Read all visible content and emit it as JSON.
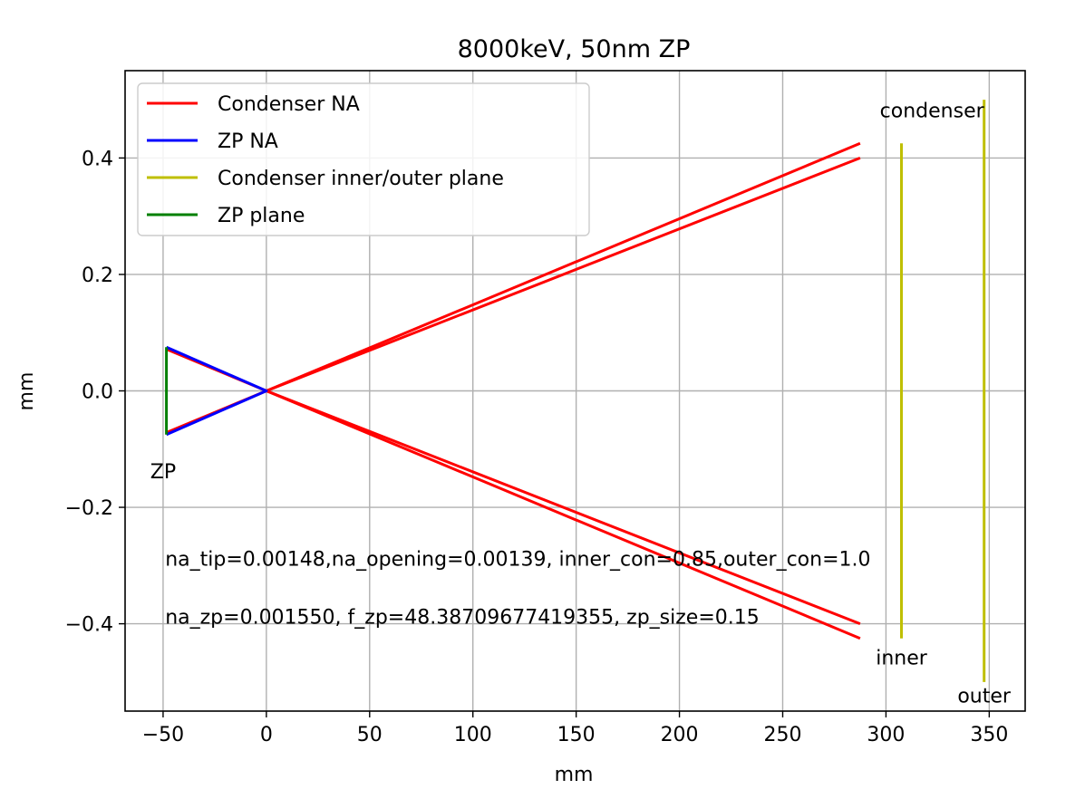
{
  "chart_data": {
    "type": "line",
    "title": "8000keV, 50nm ZP",
    "xlabel": "mm",
    "ylabel": "mm",
    "xlim": [
      -68.4,
      367.4
    ],
    "ylim": [
      -0.55,
      0.55
    ],
    "xticks": [
      -50,
      0,
      50,
      100,
      150,
      200,
      250,
      300,
      350
    ],
    "xtick_labels": [
      "−50",
      "0",
      "50",
      "100",
      "150",
      "200",
      "250",
      "300",
      "350"
    ],
    "yticks": [
      -0.4,
      -0.2,
      0.0,
      0.2,
      0.4
    ],
    "ytick_labels": [
      "−0.4",
      "−0.2",
      "0.0",
      "0.2",
      "0.4"
    ],
    "grid": true,
    "legend_position": "top-left",
    "series": [
      {
        "name": "Condenser NA",
        "color": "#ff0000",
        "segments": [
          [
            [
              -48.4,
              0.0715
            ],
            [
              0,
              0
            ],
            [
              -48.4,
              -0.0715
            ]
          ],
          [
            [
              0,
              0
            ],
            [
              287.5,
              0.425
            ]
          ],
          [
            [
              0,
              0
            ],
            [
              287.5,
              0.4
            ]
          ],
          [
            [
              0,
              0
            ],
            [
              287.5,
              -0.4
            ]
          ],
          [
            [
              0,
              0
            ],
            [
              287.5,
              -0.425
            ]
          ]
        ]
      },
      {
        "name": "ZP NA",
        "color": "#0000ff",
        "segments": [
          [
            [
              -48.4,
              0.075
            ],
            [
              0,
              0
            ],
            [
              -48.4,
              -0.075
            ]
          ]
        ]
      },
      {
        "name": "Condenser inner/outer plane",
        "color": "#bfbf00",
        "segments": [
          [
            [
              307.5,
              -0.425
            ],
            [
              307.5,
              0.425
            ]
          ],
          [
            [
              347.5,
              -0.5
            ],
            [
              347.5,
              0.5
            ]
          ]
        ]
      },
      {
        "name": "ZP plane",
        "color": "#008000",
        "segments": [
          [
            [
              -48.4,
              -0.075
            ],
            [
              -48.4,
              0.075
            ]
          ]
        ]
      }
    ],
    "annotations": [
      {
        "text": "ZP",
        "x": -50,
        "y": -0.15,
        "anchor": "middle"
      },
      {
        "text": "condenser",
        "x": 347.5,
        "y": 0.47,
        "anchor": "end"
      },
      {
        "text": "inner",
        "x": 307.5,
        "y": -0.47,
        "anchor": "middle"
      },
      {
        "text": "outer",
        "x": 347.5,
        "y": -0.535,
        "anchor": "middle"
      },
      {
        "text": "na_tip=0.00148,na_opening=0.00139, inner_con=0.85,outer_con=1.0",
        "x": -49,
        "y": -0.3,
        "anchor": "start"
      },
      {
        "text": "na_zp=0.001550, f_zp=48.38709677419355, zp_size=0.15",
        "x": -49,
        "y": -0.4,
        "anchor": "start"
      }
    ]
  }
}
